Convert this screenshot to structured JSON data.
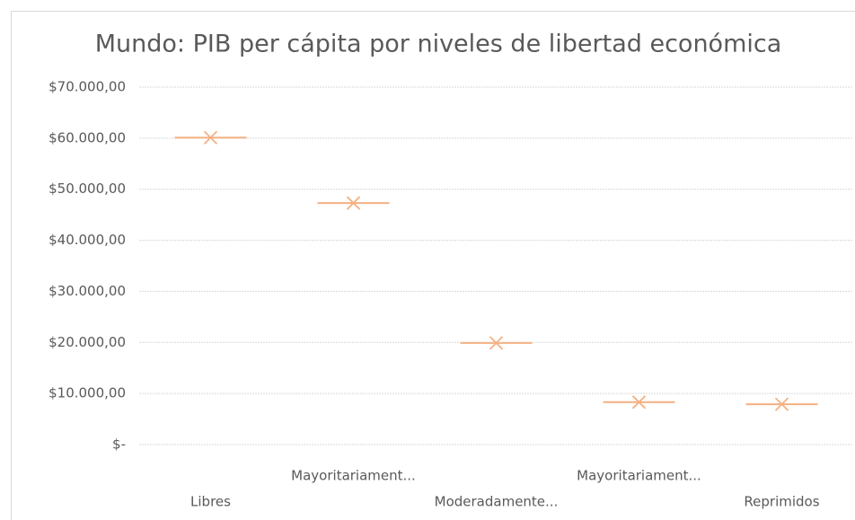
{
  "chart_data": {
    "type": "box",
    "title": "Mundo: PIB per cápita por niveles de libertad económica",
    "categories": [
      "Libres",
      "Mayoritariament...",
      "Moderadamente...",
      "Mayoritariament...",
      "Reprimidos"
    ],
    "values": [
      60100,
      47300,
      19900,
      8300,
      7900
    ],
    "color": "#f4b183",
    "ylim": [
      0,
      70000
    ],
    "yticks": [
      {
        "value": 0,
        "label": "$-"
      },
      {
        "value": 10000,
        "label": "$10.000,00"
      },
      {
        "value": 20000,
        "label": "$20.000,00"
      },
      {
        "value": 30000,
        "label": "$30.000,00"
      },
      {
        "value": 40000,
        "label": "$40.000,00"
      },
      {
        "value": 50000,
        "label": "$50.000,00"
      },
      {
        "value": 60000,
        "label": "$60.000,00"
      },
      {
        "value": 70000,
        "label": "$70.000,00"
      }
    ],
    "grid": true
  }
}
